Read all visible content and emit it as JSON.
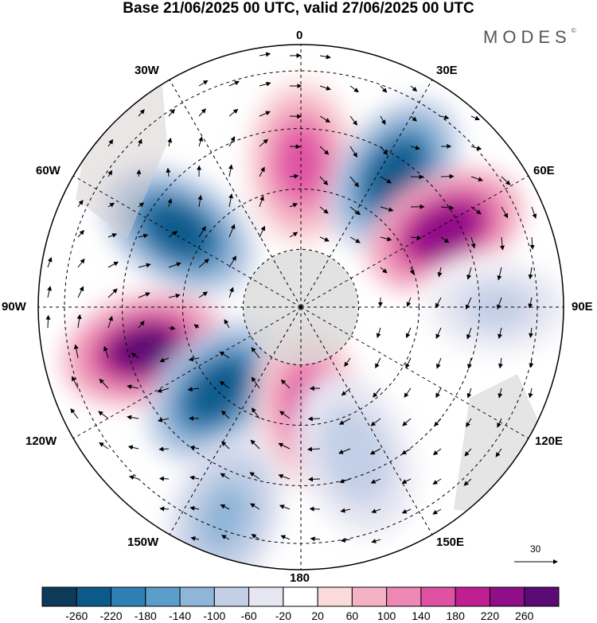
{
  "title": "Base 21/06/2025 00 UTC, valid 27/06/2025 00 UTC",
  "brand": "MODES",
  "brand_mark": "©",
  "longitude_labels": {
    "lon_0": "0",
    "lon_30e": "30E",
    "lon_60e": "60E",
    "lon_90e": "90E",
    "lon_120e": "120E",
    "lon_150e": "150E",
    "lon_180": "180",
    "lon_150w": "150W",
    "lon_120w": "120W",
    "lon_90w": "90W",
    "lon_60w": "60W",
    "lon_30w": "30W"
  },
  "reference_vector": "30",
  "colorbar": {
    "ticks": [
      "-260",
      "-220",
      "-180",
      "-140",
      "-100",
      "-60",
      "-20",
      "20",
      "60",
      "100",
      "140",
      "180",
      "220",
      "260"
    ],
    "colors": [
      "#0e3a5a",
      "#0b5a8a",
      "#2f7fb4",
      "#5a9ecb",
      "#8fb5d8",
      "#c2cfe6",
      "#e6e6f2",
      "#ffffff",
      "#fadadb",
      "#f4b3c4",
      "#ee88b4",
      "#de51a3",
      "#bf1f90",
      "#8e0f88",
      "#5c0a74"
    ]
  },
  "anomalies": [
    {
      "lon": 0,
      "lat_r": 0.55,
      "value": 150
    },
    {
      "lon": 35,
      "lat_r": 0.62,
      "value": -250
    },
    {
      "lon": 62,
      "lat_r": 0.62,
      "value": 250
    },
    {
      "lon": -58,
      "lat_r": 0.55,
      "value": -240
    },
    {
      "lon": -105,
      "lat_r": 0.62,
      "value": 270
    },
    {
      "lon": -135,
      "lat_r": 0.45,
      "value": -250
    },
    {
      "lon": 175,
      "lat_r": 0.38,
      "value": 150
    },
    {
      "lon": 160,
      "lat_r": 0.6,
      "value": -80
    },
    {
      "lon": -160,
      "lat_r": 0.85,
      "value": -120
    },
    {
      "lon": 90,
      "lat_r": 0.75,
      "value": -70
    }
  ]
}
